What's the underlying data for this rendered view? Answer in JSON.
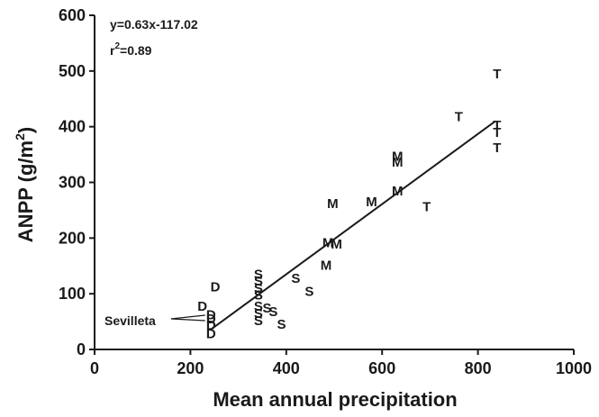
{
  "chart_data": {
    "type": "scatter",
    "xlabel": "Mean annual precipitation",
    "ylabel_main": "ANPP (g/m",
    "ylabel_sup": "2",
    "ylabel_close": ")",
    "xlim": [
      0,
      1000
    ],
    "ylim": [
      0,
      600
    ],
    "xticks": [
      "0",
      "200",
      "400",
      "600",
      "800",
      "1000"
    ],
    "yticks": [
      "0",
      "100",
      "200",
      "300",
      "400",
      "500",
      "600"
    ],
    "grid": false,
    "marker_style": "letters",
    "equation": "y=0.63x-117.02",
    "r2_main": "r",
    "r2_sup": "2",
    "r2_value": "=0.89",
    "regression": {
      "slope": 0.63,
      "intercept": -117.02,
      "x_range": [
        243,
        835
      ]
    },
    "annotation": {
      "text": "Sevilleta",
      "target": [
        242,
        55
      ]
    },
    "points": [
      {
        "label": "T",
        "x": 840,
        "y": 495
      },
      {
        "label": "T",
        "x": 760,
        "y": 418
      },
      {
        "label": "T",
        "x": 840,
        "y": 403
      },
      {
        "label": "T",
        "x": 840,
        "y": 390
      },
      {
        "label": "T",
        "x": 840,
        "y": 362
      },
      {
        "label": "T",
        "x": 693,
        "y": 256
      },
      {
        "label": "M",
        "x": 632,
        "y": 347
      },
      {
        "label": "M",
        "x": 632,
        "y": 336
      },
      {
        "label": "M",
        "x": 632,
        "y": 285
      },
      {
        "label": "M",
        "x": 578,
        "y": 265
      },
      {
        "label": "M",
        "x": 497,
        "y": 262
      },
      {
        "label": "M",
        "x": 487,
        "y": 192
      },
      {
        "label": "M",
        "x": 505,
        "y": 189
      },
      {
        "label": "M",
        "x": 483,
        "y": 151
      },
      {
        "label": "S",
        "x": 342,
        "y": 135
      },
      {
        "label": "S",
        "x": 342,
        "y": 123
      },
      {
        "label": "S",
        "x": 342,
        "y": 110
      },
      {
        "label": "S",
        "x": 342,
        "y": 98
      },
      {
        "label": "S",
        "x": 342,
        "y": 78
      },
      {
        "label": "S",
        "x": 342,
        "y": 65
      },
      {
        "label": "S",
        "x": 342,
        "y": 52
      },
      {
        "label": "S",
        "x": 360,
        "y": 74
      },
      {
        "label": "S",
        "x": 373,
        "y": 68
      },
      {
        "label": "S",
        "x": 390,
        "y": 45
      },
      {
        "label": "S",
        "x": 420,
        "y": 128
      },
      {
        "label": "S",
        "x": 448,
        "y": 104
      },
      {
        "label": "D",
        "x": 252,
        "y": 112
      },
      {
        "label": "D",
        "x": 225,
        "y": 78
      },
      {
        "label": "D",
        "x": 243,
        "y": 62
      },
      {
        "label": "D",
        "x": 243,
        "y": 55
      },
      {
        "label": "D",
        "x": 243,
        "y": 44
      },
      {
        "label": "D",
        "x": 243,
        "y": 28
      }
    ]
  }
}
